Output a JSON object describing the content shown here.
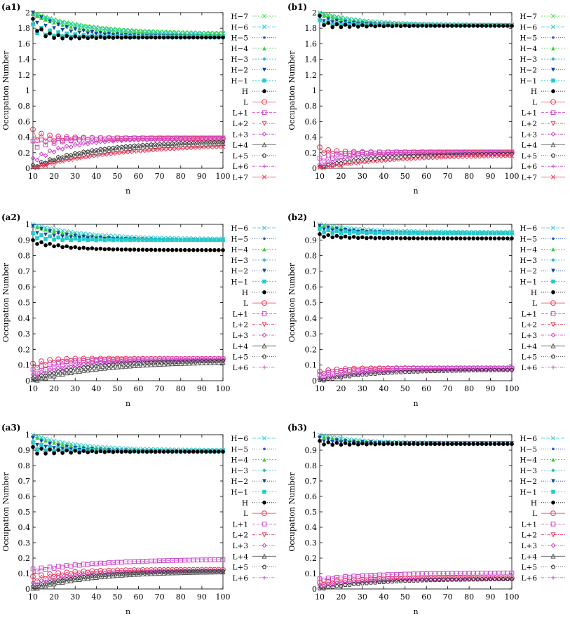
{
  "figure": {
    "description_labels": [
      "(a1)",
      "(b1)",
      "(a2)",
      "(b2)",
      "(a3)",
      "(b3)"
    ]
  },
  "styles": {
    "H-7": {
      "color": "#33dd33",
      "marker": "x",
      "dash": "2,2"
    },
    "H-6": {
      "color": "#33cccc",
      "marker": "x",
      "dash": "5,2"
    },
    "H-5": {
      "color": "#2255cc",
      "marker": "dot",
      "dash": "1,2"
    },
    "H-4": {
      "color": "#33cc33",
      "marker": "tri",
      "dash": "2,2"
    },
    "H-3": {
      "color": "#33bbbb",
      "marker": "diamond",
      "dash": "2,2"
    },
    "H-2": {
      "color": "#1144aa",
      "marker": "tridown",
      "dash": "1,2"
    },
    "H-1": {
      "color": "#22cccc",
      "marker": "square",
      "dash": "2,2"
    },
    "H": {
      "color": "#000000",
      "marker": "circle",
      "dash": "1,2"
    },
    "L": {
      "color": "#ee3355",
      "marker": "ocircle",
      "dash": ""
    },
    "L+1": {
      "color": "#cc44cc",
      "marker": "osquare",
      "dash": "4,2"
    },
    "L+2": {
      "color": "#ee3355",
      "marker": "otridown",
      "dash": "4,2,1,2"
    },
    "L+3": {
      "color": "#cc44cc",
      "marker": "odiamond",
      "dash": "4,2,1,2"
    },
    "L+4": {
      "color": "#555555",
      "marker": "otri",
      "dash": ""
    },
    "L+5": {
      "color": "#333333",
      "marker": "opent",
      "dash": "1,2"
    },
    "L+6": {
      "color": "#cc44cc",
      "marker": "plus",
      "dash": "4,2,1,2"
    },
    "L+7": {
      "color": "#ee3355",
      "marker": "x",
      "dash": ""
    }
  },
  "chart_data": [
    {
      "id": "a1",
      "label": "(a1)",
      "type": "line",
      "xlabel": "n",
      "ylabel": "Occupation Number",
      "xlim": [
        10,
        100
      ],
      "ylim": [
        0,
        2.0
      ],
      "xticks": [
        10,
        20,
        30,
        40,
        50,
        60,
        70,
        80,
        90,
        100
      ],
      "yticks": [
        0,
        0.2,
        0.4,
        0.6,
        0.8,
        1,
        1.2,
        1.4,
        1.6,
        1.8,
        2
      ],
      "legend": [
        "H−7",
        "H−6",
        "H−5",
        "H−4",
        "H−3",
        "H−2",
        "H−1",
        "H",
        "L",
        "L+1",
        "L+2",
        "L+3",
        "L+4",
        "L+5",
        "L+6",
        "L+7"
      ],
      "legend_keys": [
        "H-7",
        "H-6",
        "H-5",
        "H-4",
        "H-3",
        "H-2",
        "H-1",
        "H",
        "L",
        "L+1",
        "L+2",
        "L+3",
        "L+4",
        "L+5",
        "L+6",
        "L+7"
      ],
      "series": [
        {
          "name": "H-7",
          "start": 2.0,
          "end": 1.73,
          "rate": 0.04,
          "osc": 0
        },
        {
          "name": "H-6",
          "start": 1.99,
          "end": 1.72,
          "rate": 0.04,
          "osc": 0
        },
        {
          "name": "H-4",
          "start": 1.98,
          "end": 1.71,
          "rate": 0.05,
          "osc": 0
        },
        {
          "name": "H-2",
          "start": 1.95,
          "end": 1.69,
          "rate": 0.06,
          "osc": 0.06
        },
        {
          "name": "H-1",
          "start": 1.8,
          "end": 1.69,
          "rate": 0.1,
          "osc": 0.05
        },
        {
          "name": "H",
          "start": 1.88,
          "end": 1.68,
          "rate": 0.25,
          "osc": 0.04
        },
        {
          "name": "L",
          "start": 0.44,
          "end": 0.38,
          "rate": 0.3,
          "osc": 0.06
        },
        {
          "name": "L+1",
          "start": 0.3,
          "end": 0.39,
          "rate": 0.08,
          "osc": 0.05
        },
        {
          "name": "L+3",
          "start": 0.1,
          "end": 0.38,
          "rate": 0.06,
          "osc": 0.03
        },
        {
          "name": "L+5",
          "start": 0.02,
          "end": 0.35,
          "rate": 0.035,
          "osc": 0.02
        },
        {
          "name": "L+4",
          "start": 0.01,
          "end": 0.34,
          "rate": 0.03,
          "osc": 0.01
        },
        {
          "name": "L+7",
          "start": 0.0,
          "end": 0.31,
          "rate": 0.025,
          "osc": 0.01
        }
      ]
    },
    {
      "id": "b1",
      "label": "(b1)",
      "type": "line",
      "xlabel": "n",
      "ylabel": "Occupation Number",
      "xlim": [
        10,
        100
      ],
      "ylim": [
        0,
        2.0
      ],
      "xticks": [
        10,
        20,
        30,
        40,
        50,
        60,
        70,
        80,
        90,
        100
      ],
      "yticks": [
        0,
        0.2,
        0.4,
        0.6,
        0.8,
        1,
        1.2,
        1.4,
        1.6,
        1.8,
        2
      ],
      "legend": [
        "H−7",
        "H−6",
        "H−5",
        "H−4",
        "H−3",
        "H−2",
        "H−1",
        "H",
        "L",
        "L+1",
        "L+2",
        "L+3",
        "L+4",
        "L+5",
        "L+6",
        "L+7"
      ],
      "legend_keys": [
        "H-7",
        "H-6",
        "H-5",
        "H-4",
        "H-3",
        "H-2",
        "H-1",
        "H",
        "L",
        "L+1",
        "L+2",
        "L+3",
        "L+4",
        "L+5",
        "L+6",
        "L+7"
      ],
      "series": [
        {
          "name": "H-7",
          "start": 2.0,
          "end": 1.84,
          "rate": 0.05,
          "osc": 0
        },
        {
          "name": "H-6",
          "start": 1.99,
          "end": 1.84,
          "rate": 0.05,
          "osc": 0
        },
        {
          "name": "H-4",
          "start": 1.97,
          "end": 1.84,
          "rate": 0.06,
          "osc": 0
        },
        {
          "name": "H-2",
          "start": 1.92,
          "end": 1.84,
          "rate": 0.08,
          "osc": 0.02
        },
        {
          "name": "H-1",
          "start": 1.88,
          "end": 1.84,
          "rate": 0.12,
          "osc": 0.02
        },
        {
          "name": "H",
          "start": 1.93,
          "end": 1.83,
          "rate": 0.5,
          "osc": 0.03
        },
        {
          "name": "L",
          "start": 0.24,
          "end": 0.2,
          "rate": 0.3,
          "osc": 0.03
        },
        {
          "name": "L+1",
          "start": 0.1,
          "end": 0.21,
          "rate": 0.1,
          "osc": 0.03
        },
        {
          "name": "L+3",
          "start": 0.03,
          "end": 0.2,
          "rate": 0.07,
          "osc": 0.02
        },
        {
          "name": "L+5",
          "start": 0.01,
          "end": 0.19,
          "rate": 0.04,
          "osc": 0.01
        },
        {
          "name": "L+7",
          "start": 0.0,
          "end": 0.17,
          "rate": 0.03,
          "osc": 0.01
        }
      ]
    },
    {
      "id": "a2",
      "label": "(a2)",
      "type": "line",
      "xlabel": "n",
      "ylabel": "Occupation Number",
      "xlim": [
        10,
        100
      ],
      "ylim": [
        0,
        1.0
      ],
      "xticks": [
        10,
        20,
        30,
        40,
        50,
        60,
        70,
        80,
        90,
        100
      ],
      "yticks": [
        0,
        0.1,
        0.2,
        0.3,
        0.4,
        0.5,
        0.6,
        0.7,
        0.8,
        0.9,
        1
      ],
      "legend": [
        "H−6",
        "H−5",
        "H−4",
        "H−3",
        "H−2",
        "H−1",
        "H",
        "L",
        "L+1",
        "L+2",
        "L+3",
        "L+4",
        "L+5",
        "L+6"
      ],
      "legend_keys": [
        "H-6",
        "H-5",
        "H-4",
        "H-3",
        "H-2",
        "H-1",
        "H",
        "L",
        "L+1",
        "L+2",
        "L+3",
        "L+4",
        "L+5",
        "L+6"
      ],
      "series": [
        {
          "name": "H-6",
          "start": 1.0,
          "end": 0.905,
          "rate": 0.04,
          "osc": 0
        },
        {
          "name": "H-4",
          "start": 0.99,
          "end": 0.9,
          "rate": 0.05,
          "osc": 0
        },
        {
          "name": "H-2",
          "start": 0.97,
          "end": 0.9,
          "rate": 0.06,
          "osc": 0.02
        },
        {
          "name": "H-1",
          "start": 0.93,
          "end": 0.9,
          "rate": 0.1,
          "osc": 0.015
        },
        {
          "name": "H",
          "start": 0.89,
          "end": 0.835,
          "rate": 0.06,
          "osc": 0.01
        },
        {
          "name": "L",
          "start": 0.09,
          "end": 0.14,
          "rate": 0.12,
          "osc": 0.02
        },
        {
          "name": "L+1",
          "start": 0.05,
          "end": 0.14,
          "rate": 0.08,
          "osc": 0.02
        },
        {
          "name": "L+3",
          "start": 0.03,
          "end": 0.135,
          "rate": 0.05,
          "osc": 0.01
        },
        {
          "name": "L+5",
          "start": 0.01,
          "end": 0.13,
          "rate": 0.04,
          "osc": 0.005
        },
        {
          "name": "L+4",
          "start": 0.0,
          "end": 0.125,
          "rate": 0.03,
          "osc": 0.005
        }
      ]
    },
    {
      "id": "b2",
      "label": "(b2)",
      "type": "line",
      "xlabel": "n",
      "ylabel": "Occupation Number",
      "xlim": [
        10,
        100
      ],
      "ylim": [
        0,
        1.0
      ],
      "xticks": [
        10,
        20,
        30,
        40,
        50,
        60,
        70,
        80,
        90,
        100
      ],
      "yticks": [
        0,
        0.1,
        0.2,
        0.3,
        0.4,
        0.5,
        0.6,
        0.7,
        0.8,
        0.9,
        1
      ],
      "legend": [
        "H−6",
        "H−5",
        "H−4",
        "H−3",
        "H−2",
        "H−1",
        "H",
        "L",
        "L+1",
        "L+2",
        "L+3",
        "L+4",
        "L+5",
        "L+6"
      ],
      "legend_keys": [
        "H-6",
        "H-5",
        "H-4",
        "H-3",
        "H-2",
        "H-1",
        "H",
        "L",
        "L+1",
        "L+2",
        "L+3",
        "L+4",
        "L+5",
        "L+6"
      ],
      "series": [
        {
          "name": "H-6",
          "start": 1.0,
          "end": 0.95,
          "rate": 0.05,
          "osc": 0
        },
        {
          "name": "H-4",
          "start": 0.995,
          "end": 0.945,
          "rate": 0.06,
          "osc": 0
        },
        {
          "name": "H-2",
          "start": 0.98,
          "end": 0.945,
          "rate": 0.07,
          "osc": 0.01
        },
        {
          "name": "H-1",
          "start": 0.96,
          "end": 0.945,
          "rate": 0.1,
          "osc": 0.01
        },
        {
          "name": "H",
          "start": 0.93,
          "end": 0.91,
          "rate": 0.07,
          "osc": 0.008
        },
        {
          "name": "L",
          "start": 0.05,
          "end": 0.08,
          "rate": 0.1,
          "osc": 0.01
        },
        {
          "name": "L+1",
          "start": 0.03,
          "end": 0.08,
          "rate": 0.08,
          "osc": 0.01
        },
        {
          "name": "L+3",
          "start": 0.01,
          "end": 0.075,
          "rate": 0.05,
          "osc": 0.005
        },
        {
          "name": "L+5",
          "start": 0.0,
          "end": 0.07,
          "rate": 0.04,
          "osc": 0.004
        }
      ]
    },
    {
      "id": "a3",
      "label": "(a3)",
      "type": "line",
      "xlabel": "n",
      "ylabel": "Occupation Number",
      "xlim": [
        10,
        100
      ],
      "ylim": [
        0,
        1.0
      ],
      "xticks": [
        10,
        20,
        30,
        40,
        50,
        60,
        70,
        80,
        90,
        100
      ],
      "yticks": [
        0,
        0.1,
        0.2,
        0.3,
        0.4,
        0.5,
        0.6,
        0.7,
        0.8,
        0.9,
        1
      ],
      "legend": [
        "H−6",
        "H−5",
        "H−4",
        "H−3",
        "H−2",
        "H−1",
        "H",
        "L",
        "L+1",
        "L+2",
        "L+3",
        "L+4",
        "L+5",
        "L+6"
      ],
      "legend_keys": [
        "H-6",
        "H-5",
        "H-4",
        "H-3",
        "H-2",
        "H-1",
        "H",
        "L",
        "L+1",
        "L+2",
        "L+3",
        "L+4",
        "L+5",
        "L+6"
      ],
      "series": [
        {
          "name": "H-6",
          "start": 1.0,
          "end": 0.9,
          "rate": 0.05,
          "osc": 0
        },
        {
          "name": "H-4",
          "start": 0.99,
          "end": 0.895,
          "rate": 0.06,
          "osc": 0
        },
        {
          "name": "H-2",
          "start": 0.96,
          "end": 0.895,
          "rate": 0.08,
          "osc": 0.02
        },
        {
          "name": "H-1",
          "start": 0.93,
          "end": 0.895,
          "rate": 0.12,
          "osc": 0.02
        },
        {
          "name": "H",
          "start": 0.9,
          "end": 0.89,
          "rate": 0.3,
          "osc": 0.02
        },
        {
          "name": "L+1",
          "start": 0.12,
          "end": 0.195,
          "rate": 0.03,
          "osc": 0.01
        },
        {
          "name": "L",
          "start": 0.06,
          "end": 0.125,
          "rate": 0.06,
          "osc": 0.02
        },
        {
          "name": "L+3",
          "start": 0.03,
          "end": 0.12,
          "rate": 0.05,
          "osc": 0.01
        },
        {
          "name": "L+5",
          "start": 0.01,
          "end": 0.118,
          "rate": 0.04,
          "osc": 0.005
        },
        {
          "name": "L+4",
          "start": 0.0,
          "end": 0.115,
          "rate": 0.035,
          "osc": 0.004
        }
      ]
    },
    {
      "id": "b3",
      "label": "(b3)",
      "type": "line",
      "xlabel": "n",
      "ylabel": "Occupation Number",
      "xlim": [
        10,
        100
      ],
      "ylim": [
        0,
        1.0
      ],
      "xticks": [
        10,
        20,
        30,
        40,
        50,
        60,
        70,
        80,
        90,
        100
      ],
      "yticks": [
        0,
        0.1,
        0.2,
        0.3,
        0.4,
        0.5,
        0.6,
        0.7,
        0.8,
        0.9,
        1
      ],
      "legend": [
        "H−6",
        "H−5",
        "H−4",
        "H−3",
        "H−2",
        "H−1",
        "H",
        "L",
        "L+1",
        "L+2",
        "L+3",
        "L+4",
        "L+5",
        "L+6"
      ],
      "legend_keys": [
        "H-6",
        "H-5",
        "H-4",
        "H-3",
        "H-2",
        "H-1",
        "H",
        "L",
        "L+1",
        "L+2",
        "L+3",
        "L+4",
        "L+5",
        "L+6"
      ],
      "series": [
        {
          "name": "H-6",
          "start": 1.0,
          "end": 0.945,
          "rate": 0.06,
          "osc": 0
        },
        {
          "name": "H-4",
          "start": 0.99,
          "end": 0.945,
          "rate": 0.07,
          "osc": 0
        },
        {
          "name": "H-2",
          "start": 0.97,
          "end": 0.945,
          "rate": 0.09,
          "osc": 0.01
        },
        {
          "name": "H",
          "start": 0.95,
          "end": 0.94,
          "rate": 0.3,
          "osc": 0.01
        },
        {
          "name": "L+1",
          "start": 0.06,
          "end": 0.105,
          "rate": 0.04,
          "osc": 0.006
        },
        {
          "name": "L",
          "start": 0.03,
          "end": 0.07,
          "rate": 0.06,
          "osc": 0.01
        },
        {
          "name": "L+3",
          "start": 0.02,
          "end": 0.068,
          "rate": 0.05,
          "osc": 0.005
        },
        {
          "name": "L+5",
          "start": 0.0,
          "end": 0.065,
          "rate": 0.04,
          "osc": 0.003
        }
      ]
    }
  ]
}
